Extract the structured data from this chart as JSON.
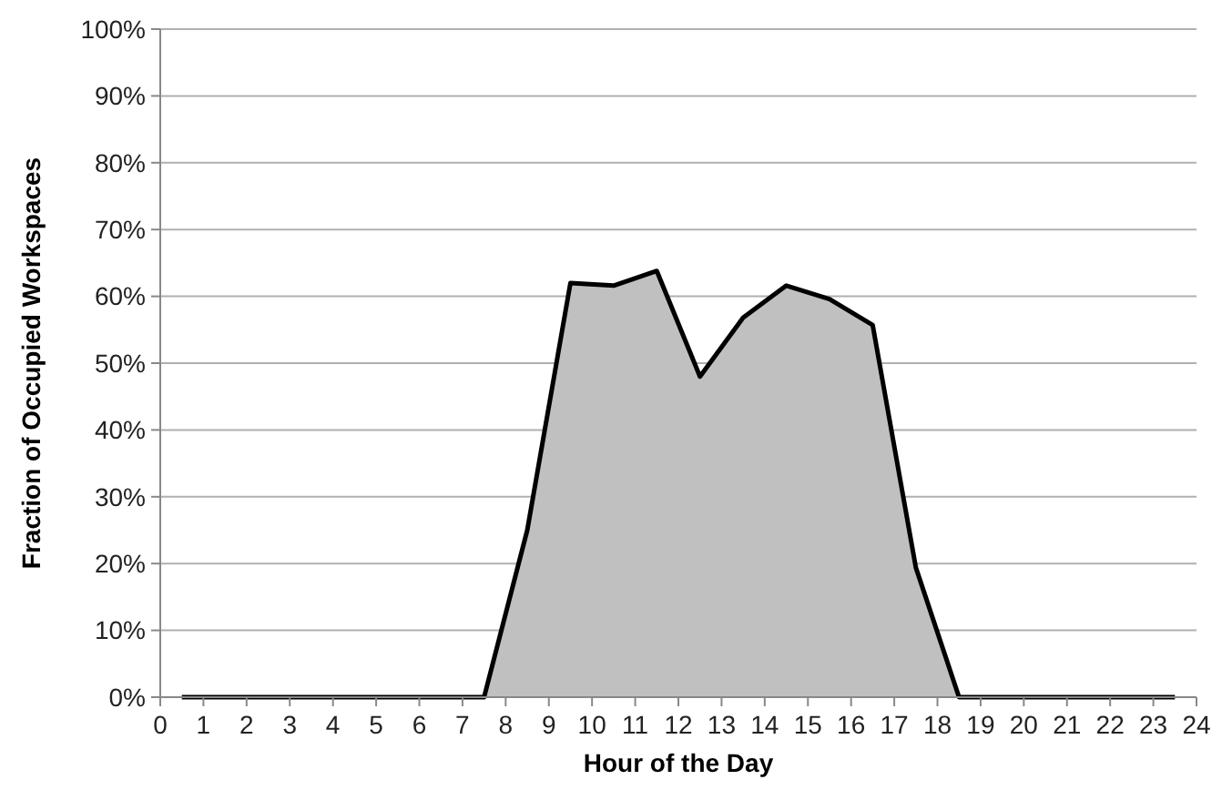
{
  "chart_data": {
    "type": "area",
    "xlabel": "Hour of the Day",
    "ylabel": "Fraction of Occupied Workspaces",
    "x": [
      0.5,
      1.5,
      2.5,
      3.5,
      4.5,
      5.5,
      6.5,
      7.5,
      8.5,
      9.5,
      10.5,
      11.5,
      12.5,
      13.5,
      14.5,
      15.5,
      16.5,
      17.5,
      18.5,
      19.5,
      20.5,
      21.5,
      22.5,
      23.5
    ],
    "series": [
      {
        "color": "#c0c0c0",
        "values": [
          0,
          0,
          0,
          0,
          0,
          0,
          0,
          0,
          25,
          62,
          61.6,
          63.8,
          48,
          56.8,
          61.6,
          59.6,
          55.7,
          19.4,
          0,
          0,
          0,
          0,
          0,
          0
        ]
      }
    ],
    "xlim": [
      0,
      24
    ],
    "xticks": [
      0,
      1,
      2,
      3,
      4,
      5,
      6,
      7,
      8,
      9,
      10,
      11,
      12,
      13,
      14,
      15,
      16,
      17,
      18,
      19,
      20,
      21,
      22,
      23,
      24
    ],
    "ylim": [
      0,
      100
    ],
    "yticks": [
      {
        "value": 0,
        "label": "0%"
      },
      {
        "value": 10,
        "label": "10%"
      },
      {
        "value": 20,
        "label": "20%"
      },
      {
        "value": 30,
        "label": "30%"
      },
      {
        "value": 40,
        "label": "40%"
      },
      {
        "value": 50,
        "label": "50%"
      },
      {
        "value": 60,
        "label": "60%"
      },
      {
        "value": 70,
        "label": "70%"
      },
      {
        "value": 80,
        "label": "80%"
      },
      {
        "value": 90,
        "label": "90%"
      },
      {
        "value": 100,
        "label": "100%"
      }
    ],
    "grid": "y"
  }
}
